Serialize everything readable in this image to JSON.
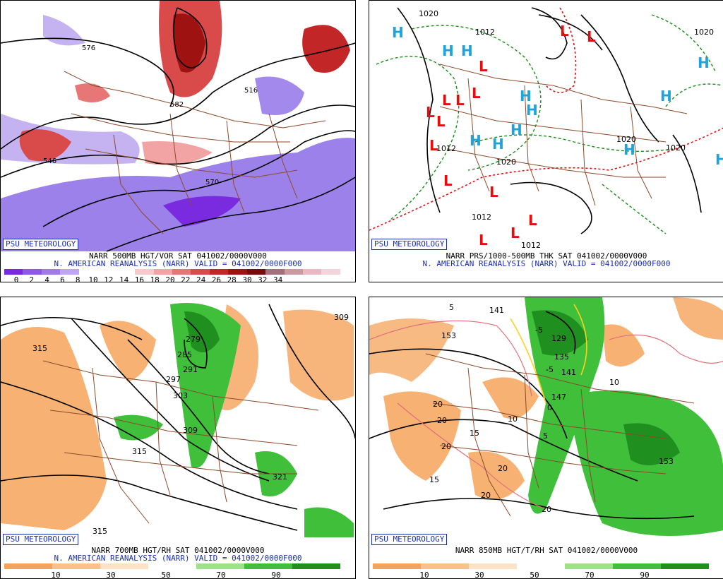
{
  "panels": [
    {
      "id": "p1",
      "stamp": "PSU METEOROLOGY",
      "caption_line1": "NARR 500MB HGT/VOR SAT 041002/0000V000",
      "caption_line2": "N. AMERICAN REANALYSIS (NARR) VALID = 041002/0000F000",
      "colorbar_colors": [
        "#7a2be0",
        "#8e57e6",
        "#a27ae8",
        "#bfa6ee",
        "#ffffff",
        "#ffffff",
        "#ffffff",
        "#f7c9c9",
        "#f2a3a3",
        "#e77676",
        "#d94a4a",
        "#c22626",
        "#9e1212",
        "#7a0a0a",
        "#a2707a",
        "#c89aa2",
        "#e8b8c3",
        "#f6d3da"
      ],
      "colorbar_ticks": [
        "0",
        "2",
        "4",
        "6",
        "8",
        "10",
        "12",
        "14",
        "16",
        "18",
        "20",
        "22",
        "24",
        "26",
        "28",
        "30",
        "32",
        "34"
      ],
      "contour_labels": [
        "576",
        "582",
        "516",
        "546",
        "570"
      ]
    },
    {
      "id": "p2",
      "stamp": "PSU METEOROLOGY",
      "caption_line1": "NARR PRS/1000-500MB THK SAT 041002/0000V000",
      "caption_line2": "N. AMERICAN REANALYSIS (NARR) VALID = 041002/0000F000",
      "pressure_labels": [
        "1020",
        "1012",
        "1020",
        "1012",
        "1020",
        "1020",
        "1012",
        "1020",
        "1012"
      ],
      "h_symbol": "H",
      "l_symbol": "L"
    },
    {
      "id": "p3",
      "stamp": "PSU METEOROLOGY",
      "caption_line1": "NARR 700MB HGT/RH SAT 041002/0000V000",
      "caption_line2": "N. AMERICAN REANALYSIS (NARR) VALID = 041002/0000F000",
      "colorbar_colors": [
        "#f5a35a",
        "#f8c28c",
        "#fde2c7",
        "#ffffff",
        "#9ee08c",
        "#3fbf3a",
        "#1f8f1f"
      ],
      "colorbar_ticks": [
        "10",
        "30",
        "50",
        "70",
        "90"
      ],
      "contour_labels": [
        "315",
        "309",
        "279",
        "285",
        "291",
        "297",
        "303",
        "309",
        "315",
        "321",
        "315"
      ]
    },
    {
      "id": "p4",
      "stamp": "PSU METEOROLOGY",
      "caption_line1": "NARR 850MB HGT/T/RH SAT 041002/0000V000",
      "caption_line2": "",
      "colorbar_colors": [
        "#f5a35a",
        "#f8c28c",
        "#fde2c7",
        "#ffffff",
        "#9ee08c",
        "#3fbf3a",
        "#1f8f1f"
      ],
      "colorbar_ticks": [
        "10",
        "30",
        "50",
        "70",
        "90"
      ],
      "contour_labels": [
        "153",
        "141",
        "135",
        "129",
        "141",
        "147",
        "153",
        "5",
        "-5",
        "-5",
        "5",
        "15",
        "15",
        "10",
        "10",
        "20",
        "20",
        "20",
        "20",
        "20",
        "20",
        "0"
      ]
    }
  ],
  "colors": {
    "stamp_blue": "#1a2fb0",
    "border_brown": "#8b4a2b",
    "high_blue": "#1fa3d9",
    "low_red": "#e01010",
    "orange_rh": "#f5a35a",
    "green_rh": "#3fbf3a",
    "purple_vor": "#8c6be6",
    "red_vor": "#d94a4a"
  }
}
